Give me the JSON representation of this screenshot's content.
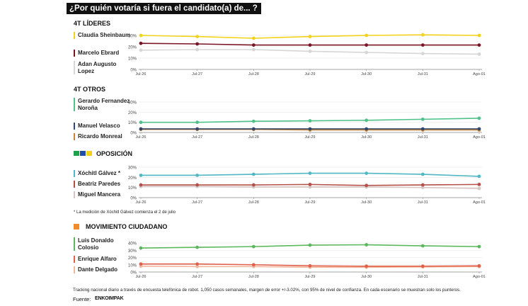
{
  "title": "¿Por quién votaría si fuera el candidato(a) de... ?",
  "footer": "Tracking nacional diario a través de encuesta telefónica de robot. 1,050 casos semanales, margen de error +/-3.02%, con 95% de nivel de confianza. En cada escenario se muestran solo los punteros.",
  "source_label": "Fuente:",
  "source_name": "ENKOIMPAK",
  "note": "* La medición de Xóchitl Gálvez comienza el 2 de julio",
  "logo_colors": [
    "#1aa34a",
    "#1f4ea3",
    "#f2d21b",
    "#8c1c2c"
  ],
  "chart_data": [
    {
      "type": "line",
      "title": "4T LÍDERES",
      "categories": [
        "Jul-26",
        "Jul-27",
        "Jul-28",
        "Jul-29",
        "Jul-30",
        "Jul-31",
        "Ago-01"
      ],
      "yticks": [
        "30%",
        "20%",
        "10%",
        "0%"
      ],
      "ylim": [
        0,
        30
      ],
      "series": [
        {
          "name": "Claudia Sheinbaum",
          "color": "#f2d21b",
          "values": [
            30,
            29,
            27.5,
            29,
            30,
            30.5,
            30
          ]
        },
        {
          "name": "Marcelo Ebrard",
          "color": "#7b1425",
          "values": [
            23,
            22.5,
            21.5,
            21.5,
            21.5,
            21.5,
            21.5
          ]
        },
        {
          "name": "Adan Augusto Lopez",
          "color": "#d6d6d6",
          "values": [
            17,
            17.5,
            17.5,
            16,
            15,
            14,
            13.5
          ]
        }
      ]
    },
    {
      "type": "line",
      "title": "4T OTROS",
      "categories": [
        "Jul-26",
        "Jul-27",
        "Jul-28",
        "Jul-29",
        "Jul-30",
        "Jul-31",
        "Ago-01"
      ],
      "yticks": [
        "30%",
        "20%",
        "10%",
        "0%"
      ],
      "ylim": [
        0,
        30
      ],
      "series": [
        {
          "name": "Gerardo Fernandez Noroña",
          "color": "#4fc28a",
          "values": [
            10,
            10,
            11,
            11.5,
            12,
            13,
            14
          ]
        },
        {
          "name": "Manuel Velasco",
          "color": "#37476b",
          "values": [
            3.5,
            3.5,
            3.5,
            3.5,
            3.5,
            3.5,
            3.5
          ]
        },
        {
          "name": "Ricardo Monreal",
          "color": "#c4863a",
          "values": [
            3,
            3,
            3,
            2.5,
            2.5,
            2.5,
            2.5
          ]
        }
      ]
    },
    {
      "type": "line",
      "title": "OPOSICIÓN",
      "categories": [
        "Jul-26",
        "Jul-27",
        "Jul-28",
        "Jul-29",
        "Jul-30",
        "Jul-31",
        "Ago-01"
      ],
      "yticks": [
        "30%",
        "20%",
        "10%",
        "0%"
      ],
      "ylim": [
        0,
        30
      ],
      "series": [
        {
          "name": "Xóchitl Gálvez *",
          "color": "#4fb8c4",
          "values": [
            22,
            22,
            23,
            24,
            24,
            23,
            21
          ]
        },
        {
          "name": "Beatriz Paredes",
          "color": "#b55048",
          "values": [
            12.5,
            12.5,
            12.5,
            13,
            12,
            12.5,
            13
          ]
        },
        {
          "name": "Miguel Mancera",
          "color": "#d8c4c4",
          "values": [
            11,
            11,
            10.5,
            10.5,
            10.5,
            10,
            9
          ]
        }
      ]
    },
    {
      "type": "line",
      "title": "MOVIMIENTO CIUDADANO",
      "categories": [
        "Jul-26",
        "Jul-27",
        "Jul-28",
        "Jul-29",
        "Jul-30",
        "Jul-31",
        "Ago-01"
      ],
      "yticks": [
        "40%",
        "30%",
        "20%",
        "10%",
        "0%"
      ],
      "ylim": [
        0,
        40
      ],
      "series": [
        {
          "name": "Luis Donaldo Colosio",
          "color": "#5cb85c",
          "values": [
            33,
            34,
            35,
            37,
            37.5,
            36,
            35
          ]
        },
        {
          "name": "Enrique Alfaro",
          "color": "#e0604a",
          "values": [
            11,
            11,
            10,
            8.5,
            8,
            8,
            8.5
          ]
        },
        {
          "name": "Dante Delgado",
          "color": "#f3b59c",
          "values": [
            8,
            7.5,
            7.5,
            6.5,
            6.5,
            7,
            7.5
          ]
        }
      ]
    }
  ]
}
